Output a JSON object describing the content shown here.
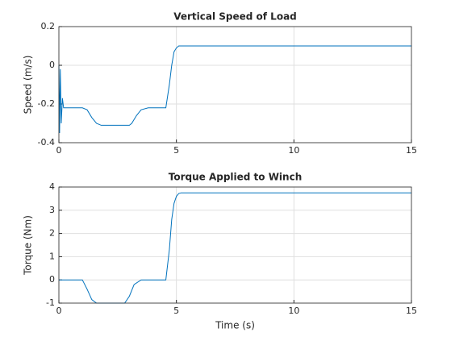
{
  "chart_data": [
    {
      "type": "line",
      "title": "Vertical Speed of Load",
      "ylabel": "Speed (m/s)",
      "x": [
        0,
        0.03,
        0.06,
        0.1,
        0.15,
        0.2,
        0.5,
        1.0,
        1.2,
        1.4,
        1.6,
        1.8,
        2.2,
        2.6,
        3.0,
        3.1,
        3.3,
        3.5,
        3.8,
        4.2,
        4.55,
        4.7,
        4.8,
        4.9,
        5.0,
        5.1,
        5.5,
        6.0,
        8.0,
        10.0,
        12.0,
        15.0
      ],
      "series": [
        {
          "name": "speed",
          "color": "#0072bd",
          "values": [
            0,
            -0.35,
            -0.02,
            -0.3,
            -0.17,
            -0.22,
            -0.22,
            -0.22,
            -0.23,
            -0.27,
            -0.3,
            -0.31,
            -0.31,
            -0.31,
            -0.31,
            -0.3,
            -0.26,
            -0.23,
            -0.22,
            -0.22,
            -0.22,
            -0.1,
            0.0,
            0.07,
            0.09,
            0.1,
            0.1,
            0.1,
            0.1,
            0.1,
            0.1,
            0.1
          ]
        }
      ],
      "xlim": [
        0,
        15
      ],
      "xticks": [
        0,
        5,
        10,
        15
      ],
      "ylim": [
        -0.4,
        0.2
      ],
      "yticks": [
        -0.4,
        -0.2,
        0,
        0.2
      ],
      "grid": true
    },
    {
      "type": "line",
      "title": "Torque Applied to Winch",
      "xlabel": "Time (s)",
      "ylabel": "Torque (Nm)",
      "x": [
        0,
        0.5,
        1.0,
        1.2,
        1.4,
        1.6,
        2.0,
        2.5,
        2.8,
        3.0,
        3.2,
        3.5,
        4.0,
        4.55,
        4.7,
        4.8,
        4.9,
        5.0,
        5.1,
        5.2,
        6.0,
        10.0,
        15.0
      ],
      "series": [
        {
          "name": "torque",
          "color": "#0072bd",
          "values": [
            0,
            0,
            0,
            -0.4,
            -0.85,
            -1,
            -1,
            -1,
            -1,
            -0.7,
            -0.2,
            0,
            0,
            0,
            1.3,
            2.6,
            3.3,
            3.6,
            3.72,
            3.75,
            3.75,
            3.75,
            3.75
          ]
        }
      ],
      "xlim": [
        0,
        15
      ],
      "xticks": [
        0,
        5,
        10,
        15
      ],
      "ylim": [
        -1,
        4
      ],
      "yticks": [
        -1,
        0,
        1,
        2,
        3,
        4
      ],
      "grid": true
    }
  ]
}
